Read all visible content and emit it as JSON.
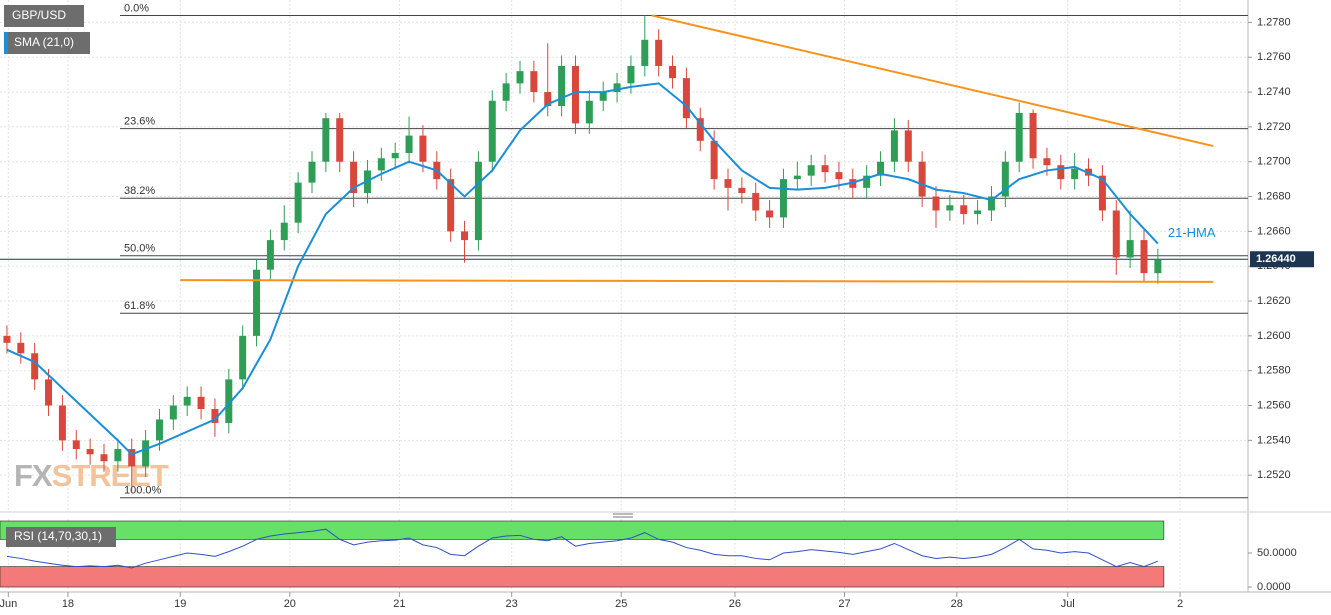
{
  "chart_data": {
    "type": "candlestick",
    "title": "GBP/USD",
    "x": [
      0.5,
      1.5,
      2.5,
      3.5,
      4.5,
      5.5,
      6.5,
      7.5,
      8.5,
      9.5,
      10.5,
      11.5,
      12.5,
      13.5,
      14.5,
      15.5,
      16.5,
      17.5,
      18.5,
      19.5,
      20.5,
      21.5,
      22.5,
      23.5,
      24.5,
      25.5,
      26.5,
      27.5,
      28.5,
      29.5,
      30.5,
      31.5,
      32.5,
      33.5,
      34.5,
      35.5,
      36.5,
      37.5,
      38.5,
      39.5,
      40.5,
      41.5,
      42.5,
      43.5,
      44.5,
      45.5,
      46.5,
      47.5,
      48.5,
      49.5,
      50.5,
      51.5,
      52.5,
      53.5,
      54.5,
      55.5,
      56.5,
      57.5,
      58.5,
      59.5,
      60.5,
      61.5,
      62.5,
      63.5,
      64.5,
      65.5,
      66.5,
      67.5,
      68.5,
      69.5,
      70.5,
      71.5,
      72.5,
      73.5,
      74.5,
      75.5,
      76.5,
      77.5,
      78.5,
      79.5,
      80.5,
      81.5,
      82.5,
      83.5
    ],
    "open": [
      1.26,
      1.2596,
      1.259,
      1.2575,
      1.256,
      1.254,
      1.2535,
      1.2532,
      1.2528,
      1.2535,
      1.2525,
      1.254,
      1.2552,
      1.256,
      1.2565,
      1.2558,
      1.255,
      1.2575,
      1.26,
      1.2638,
      1.2655,
      1.2665,
      1.2688,
      1.27,
      1.2725,
      1.27,
      1.2682,
      1.2695,
      1.2702,
      1.2705,
      1.2715,
      1.27,
      1.269,
      1.266,
      1.2655,
      1.27,
      1.2735,
      1.2745,
      1.2752,
      1.274,
      1.2732,
      1.2755,
      1.2722,
      1.2735,
      1.274,
      1.2745,
      1.2755,
      1.277,
      1.2755,
      1.2748,
      1.2725,
      1.2712,
      1.269,
      1.2685,
      1.2682,
      1.2672,
      1.2668,
      1.269,
      1.2692,
      1.2698,
      1.2694,
      1.269,
      1.2685,
      1.2692,
      1.27,
      1.2718,
      1.27,
      1.268,
      1.2672,
      1.2675,
      1.267,
      1.2672,
      1.268,
      1.27,
      1.2728,
      1.2702,
      1.2698,
      1.269,
      1.2696,
      1.2692,
      1.2672,
      1.2645,
      1.2655,
      1.2636
    ],
    "high": [
      1.2606,
      1.2602,
      1.2596,
      1.2581,
      1.2566,
      1.2546,
      1.2541,
      1.2538,
      1.2541,
      1.2541,
      1.2546,
      1.2558,
      1.2566,
      1.2571,
      1.2571,
      1.2564,
      1.2581,
      1.2606,
      1.2644,
      1.2661,
      1.2675,
      1.2694,
      1.2706,
      1.2728,
      1.2728,
      1.2706,
      1.2701,
      1.2708,
      1.2711,
      1.2726,
      1.2721,
      1.2706,
      1.2696,
      1.2666,
      1.2706,
      1.2741,
      1.2751,
      1.2758,
      1.2758,
      1.2768,
      1.2761,
      1.2761,
      1.2741,
      1.2746,
      1.2751,
      1.2761,
      1.2784,
      1.2776,
      1.2761,
      1.2754,
      1.2731,
      1.2718,
      1.2696,
      1.2691,
      1.2688,
      1.2678,
      1.2696,
      1.27,
      1.2704,
      1.2704,
      1.27,
      1.2696,
      1.2698,
      1.2706,
      1.2725,
      1.2724,
      1.2706,
      1.2686,
      1.2681,
      1.2681,
      1.2678,
      1.2686,
      1.2706,
      1.2734,
      1.273,
      1.2708,
      1.2704,
      1.2705,
      1.2702,
      1.2698,
      1.2678,
      1.2672,
      1.2661,
      1.265
    ],
    "low": [
      1.259,
      1.2584,
      1.2569,
      1.2554,
      1.2534,
      1.2529,
      1.2526,
      1.2522,
      1.2522,
      1.251,
      1.2519,
      1.2534,
      1.2546,
      1.2554,
      1.2552,
      1.2542,
      1.2544,
      1.2569,
      1.2594,
      1.2632,
      1.2649,
      1.2659,
      1.2682,
      1.2694,
      1.2694,
      1.2674,
      1.2676,
      1.2689,
      1.2696,
      1.2699,
      1.2694,
      1.2684,
      1.2654,
      1.2642,
      1.2649,
      1.2694,
      1.2729,
      1.2739,
      1.2734,
      1.2726,
      1.2726,
      1.2716,
      1.2716,
      1.2729,
      1.2734,
      1.2739,
      1.2749,
      1.2749,
      1.2742,
      1.2719,
      1.2706,
      1.2684,
      1.2672,
      1.2676,
      1.2666,
      1.2662,
      1.2662,
      1.2684,
      1.2686,
      1.2688,
      1.2684,
      1.2679,
      1.2679,
      1.2686,
      1.2694,
      1.2694,
      1.2674,
      1.2662,
      1.2666,
      1.2664,
      1.2664,
      1.2666,
      1.2674,
      1.2694,
      1.2696,
      1.2692,
      1.2684,
      1.2684,
      1.2686,
      1.2666,
      1.2635,
      1.2639,
      1.2631,
      1.263
    ],
    "close": [
      1.2596,
      1.259,
      1.2575,
      1.256,
      1.254,
      1.2535,
      1.2532,
      1.2528,
      1.2535,
      1.2525,
      1.254,
      1.2552,
      1.256,
      1.2565,
      1.2558,
      1.255,
      1.2575,
      1.26,
      1.2638,
      1.2655,
      1.2665,
      1.2688,
      1.27,
      1.2725,
      1.27,
      1.2682,
      1.2695,
      1.2702,
      1.2705,
      1.2715,
      1.27,
      1.269,
      1.266,
      1.2655,
      1.27,
      1.2735,
      1.2745,
      1.2752,
      1.274,
      1.2732,
      1.2755,
      1.2722,
      1.2735,
      1.274,
      1.2745,
      1.2755,
      1.277,
      1.2755,
      1.2748,
      1.2725,
      1.2712,
      1.269,
      1.2685,
      1.2682,
      1.2672,
      1.2668,
      1.269,
      1.2692,
      1.2698,
      1.2694,
      1.269,
      1.2685,
      1.2692,
      1.27,
      1.2718,
      1.27,
      1.268,
      1.2672,
      1.2675,
      1.267,
      1.2672,
      1.268,
      1.27,
      1.2728,
      1.2702,
      1.2698,
      1.269,
      1.2696,
      1.2692,
      1.2672,
      1.2645,
      1.2655,
      1.2636,
      1.2644
    ],
    "up_color": "#2e9e57",
    "down_color": "#d8463c",
    "xlim": [
      0,
      90
    ],
    "xticks": [
      {
        "value": 0.6,
        "label": "Jun"
      },
      {
        "value": 4.9,
        "label": "18"
      },
      {
        "value": 13,
        "label": "19"
      },
      {
        "value": 20.9,
        "label": "20"
      },
      {
        "value": 28.8,
        "label": "21"
      },
      {
        "value": 36.9,
        "label": "23"
      },
      {
        "value": 44.8,
        "label": "25"
      },
      {
        "value": 53,
        "label": "26"
      },
      {
        "value": 60.9,
        "label": "27"
      },
      {
        "value": 69,
        "label": "28"
      },
      {
        "value": 77,
        "label": "Jul"
      },
      {
        "value": 85.1,
        "label": "2"
      }
    ],
    "ylim": [
      1.25,
      1.279
    ],
    "yticks": [
      {
        "value": 1.252,
        "label": "1.2520"
      },
      {
        "value": 1.254,
        "label": "1.2540"
      },
      {
        "value": 1.256,
        "label": "1.2560"
      },
      {
        "value": 1.258,
        "label": "1.2580"
      },
      {
        "value": 1.26,
        "label": "1.2600"
      },
      {
        "value": 1.262,
        "label": "1.2620"
      },
      {
        "value": 1.264,
        "label": "1.2640"
      },
      {
        "value": 1.266,
        "label": "1.2660"
      },
      {
        "value": 1.268,
        "label": "1.2680"
      },
      {
        "value": 1.27,
        "label": "1.2700"
      },
      {
        "value": 1.272,
        "label": "1.2720"
      },
      {
        "value": 1.274,
        "label": "1.2740"
      },
      {
        "value": 1.276,
        "label": "1.2760"
      },
      {
        "value": 1.278,
        "label": "1.2780"
      }
    ],
    "grid": true,
    "overlays": [
      {
        "name": "SMA (21,0)",
        "color": "#1a8fd8",
        "x": [
          0.5,
          2.5,
          4.5,
          6.5,
          8.5,
          9.5,
          11.5,
          13.5,
          15.5,
          17.5,
          19.5,
          21.5,
          23.5,
          25.5,
          27.5,
          29.5,
          31.5,
          33.5,
          35.5,
          37.5,
          39.5,
          41.5,
          43.5,
          45.5,
          47.5,
          49.5,
          51.5,
          53.5,
          55.5,
          57.5,
          59.5,
          61.5,
          63.5,
          65.5,
          67.5,
          69.5,
          71.5,
          73.5,
          75.5,
          77.5,
          79.5,
          81.5,
          83.5
        ],
        "values": [
          1.2592,
          1.2585,
          1.257,
          1.2555,
          1.254,
          1.2532,
          1.2538,
          1.2545,
          1.2552,
          1.257,
          1.2598,
          1.264,
          1.267,
          1.2685,
          1.2693,
          1.27,
          1.2695,
          1.268,
          1.2695,
          1.2718,
          1.2733,
          1.274,
          1.274,
          1.2743,
          1.2745,
          1.2732,
          1.2712,
          1.2695,
          1.2685,
          1.2684,
          1.2685,
          1.2688,
          1.2693,
          1.269,
          1.2684,
          1.2682,
          1.2678,
          1.269,
          1.2695,
          1.2697,
          1.269,
          1.267,
          1.2653
        ]
      }
    ],
    "annotation": "21-HMA",
    "fibonacci": [
      {
        "label": "0.0%",
        "value": 1.2784
      },
      {
        "label": "23.6%",
        "value": 1.2719
      },
      {
        "label": "38.2%",
        "value": 1.2679
      },
      {
        "label": "50.0%",
        "value": 1.2646
      },
      {
        "label": "61.8%",
        "value": 1.2613
      },
      {
        "label": "100.0%",
        "value": 1.2507
      }
    ],
    "trendlines": [
      {
        "color": "#f7931a",
        "x": [
          47,
          87.5
        ],
        "y": [
          1.2784,
          1.2709
        ]
      },
      {
        "color": "#f7931a",
        "x": [
          13,
          87.5
        ],
        "y": [
          1.2632,
          1.2631
        ]
      }
    ],
    "last_price": {
      "value": 1.2644,
      "label": "1.26440"
    },
    "watermark": [
      "FX",
      "STREET"
    ],
    "rsi": {
      "name": "RSI (14,70,30,1)",
      "color": "#3050c8",
      "values": [
        45,
        42,
        38,
        35,
        32,
        30,
        31,
        30,
        32,
        28,
        35,
        40,
        45,
        50,
        48,
        45,
        52,
        60,
        70,
        75,
        78,
        80,
        82,
        85,
        70,
        62,
        66,
        68,
        69,
        72,
        62,
        58,
        48,
        46,
        60,
        72,
        75,
        76,
        70,
        68,
        74,
        60,
        64,
        66,
        68,
        72,
        80,
        70,
        66,
        58,
        54,
        48,
        46,
        46,
        42,
        40,
        50,
        52,
        55,
        53,
        51,
        48,
        52,
        56,
        64,
        55,
        46,
        42,
        44,
        42,
        44,
        48,
        58,
        70,
        56,
        54,
        50,
        52,
        50,
        40,
        30,
        36,
        30,
        38
      ],
      "ylim": [
        0,
        100
      ],
      "yticks": [
        {
          "value": 50,
          "label": "50.0000"
        },
        {
          "value": 0,
          "label": "0.0000"
        }
      ],
      "upper": 70,
      "lower": 30,
      "upper_color": "#66e066",
      "lower_color": "#f47a7a"
    }
  }
}
